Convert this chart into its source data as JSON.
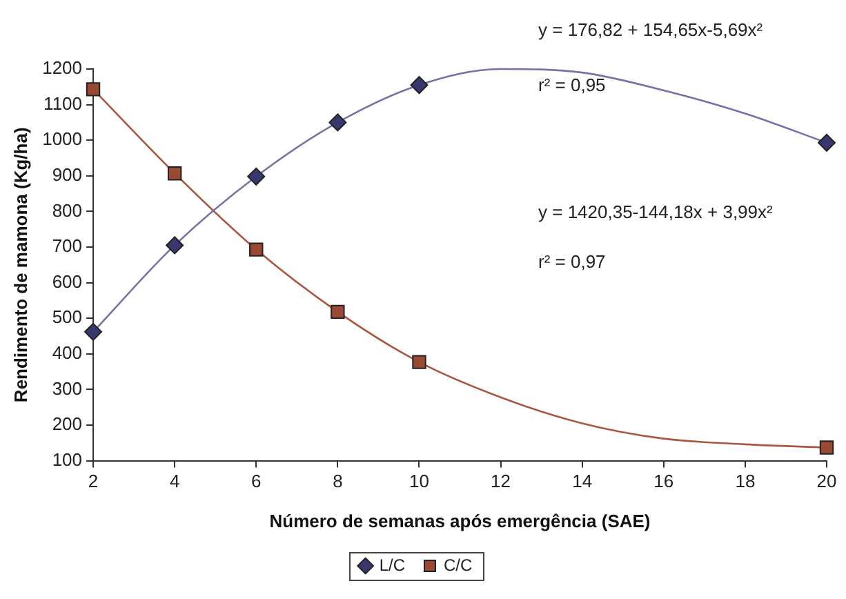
{
  "chart_data": {
    "type": "scatter",
    "xlabel": "Número de semanas após emergência (SAE)",
    "ylabel": "Rendimento de mamona (Kg/ha)",
    "xlim": [
      2,
      20
    ],
    "xticks": [
      2,
      4,
      6,
      8,
      10,
      12,
      14,
      16,
      18,
      20
    ],
    "ylim": [
      100,
      1200
    ],
    "yticks": [
      100,
      200,
      300,
      400,
      500,
      600,
      700,
      800,
      900,
      1000,
      1100,
      1200
    ],
    "grid": false,
    "legend": "bottom",
    "annotations": [
      "y = 176,82 + 154,65x-5,69x²",
      "r² = 0,95",
      "y = 1420,35-144,18x + 3,99x²",
      "r² = 0,97"
    ],
    "series": [
      {
        "name": "L/C",
        "marker": "diamond",
        "color": "#38386e",
        "x": [
          2,
          4,
          6,
          8,
          10,
          20
        ],
        "values": [
          462,
          705,
          898,
          1050,
          1155,
          993
        ]
      },
      {
        "name": "C/C",
        "marker": "square",
        "color": "#9a4a34",
        "x": [
          2,
          4,
          6,
          8,
          10,
          20
        ],
        "values": [
          1143,
          907,
          693,
          518,
          377,
          137
        ]
      },
      {
        "type": "line",
        "marker": "none",
        "color": "#7373a8",
        "x": [
          2,
          4,
          6,
          8,
          10,
          12,
          14,
          16,
          18,
          20
        ],
        "values": [
          462,
          705,
          898,
          1050,
          1155,
          1200,
          1190,
          1140,
          1075,
          993
        ]
      },
      {
        "type": "line",
        "marker": "none",
        "color": "#a8573e",
        "x": [
          2,
          4,
          6,
          8,
          10,
          12,
          14,
          16,
          18,
          20
        ],
        "values": [
          1143,
          907,
          693,
          518,
          377,
          278,
          205,
          162,
          146,
          137
        ]
      }
    ]
  }
}
